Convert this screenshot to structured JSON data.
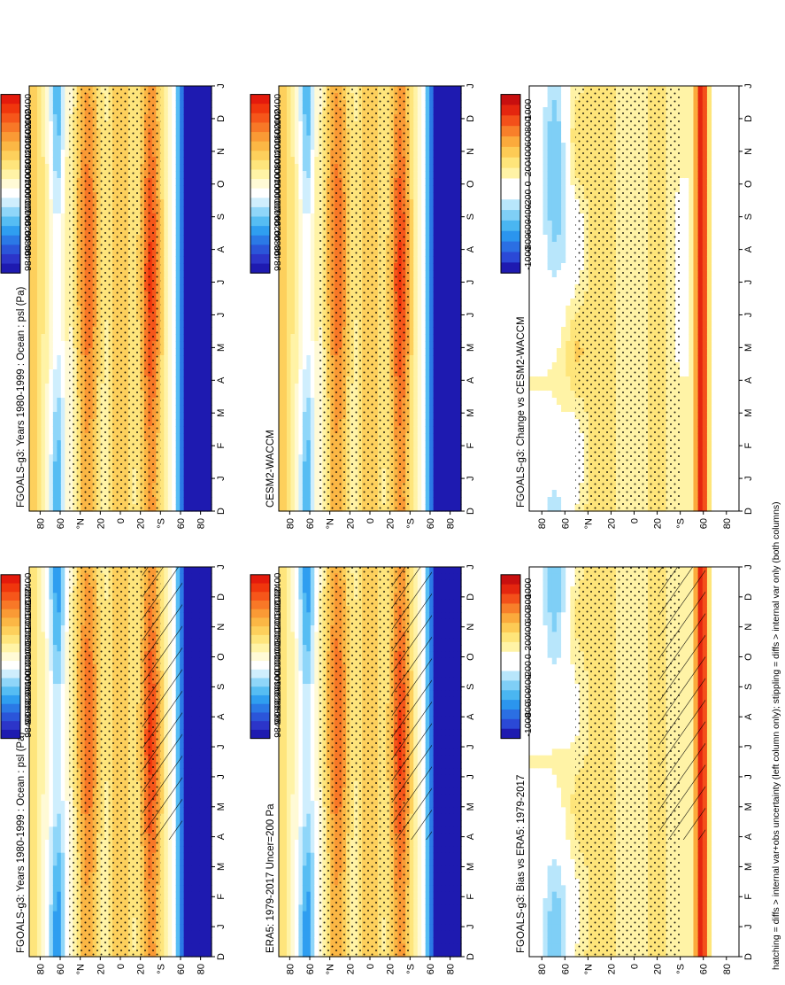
{
  "figure": {
    "footer": "hatching = diffs > internal var+obs uncertainty (left column only); stippling = diffs > internal var only (both columns)"
  },
  "chart_data": [
    {
      "type": "heatmap",
      "id": "fgoals-clim",
      "title": "FGOALS-g3: Years 1980-1999 : Ocean : psl (Pa)",
      "months": [
        "D",
        "J",
        "F",
        "M",
        "A",
        "M",
        "J",
        "J",
        "A",
        "S",
        "O",
        "N",
        "D",
        "J"
      ],
      "lat_ticks": [
        "80",
        "60",
        "°N",
        "20",
        "0",
        "20",
        "°S",
        "60",
        "80"
      ],
      "colorbar": [
        "102400",
        "102000",
        "101600",
        "101200",
        "100800",
        "100400",
        "100000",
        "99600",
        "99200",
        "98800",
        "98400"
      ],
      "kind": "clim",
      "hatching": true,
      "stippling": true
    },
    {
      "type": "heatmap",
      "id": "fgoals-clim-b",
      "title": "FGOALS-g3: Years 1980-1999 : Ocean : psl (Pa)",
      "months": [
        "D",
        "J",
        "F",
        "M",
        "A",
        "M",
        "J",
        "J",
        "A",
        "S",
        "O",
        "N",
        "D",
        "J"
      ],
      "lat_ticks": [
        "80",
        "60",
        "°N",
        "20",
        "0",
        "20",
        "°S",
        "60",
        "80"
      ],
      "colorbar": [
        "102400",
        "102000",
        "101600",
        "101200",
        "100800",
        "100400",
        "100000",
        "99600",
        "99200",
        "98800",
        "98400"
      ],
      "kind": "clim",
      "hatching": false,
      "stippling": true
    },
    {
      "type": "heatmap",
      "id": "era5",
      "title": "ERA5: 1979-2017 Uncer=200 Pa",
      "months": [
        "D",
        "J",
        "F",
        "M",
        "A",
        "M",
        "J",
        "J",
        "A",
        "S",
        "O",
        "N",
        "D",
        "J"
      ],
      "lat_ticks": [
        "80",
        "60",
        "°N",
        "20",
        "0",
        "20",
        "°S",
        "60",
        "80"
      ],
      "colorbar": [
        "102400",
        "102000",
        "101600",
        "101200",
        "100800",
        "100400",
        "100000",
        "99600",
        "99200",
        "98800",
        "98400"
      ],
      "kind": "clim",
      "hatching": true,
      "stippling": true
    },
    {
      "type": "heatmap",
      "id": "cesm2",
      "title": "CESM2-WACCM",
      "months": [
        "D",
        "J",
        "F",
        "M",
        "A",
        "M",
        "J",
        "J",
        "A",
        "S",
        "O",
        "N",
        "D",
        "J"
      ],
      "lat_ticks": [
        "80",
        "60",
        "°N",
        "20",
        "0",
        "20",
        "°S",
        "60",
        "80"
      ],
      "colorbar": [
        "102400",
        "102000",
        "101600",
        "101200",
        "100800",
        "100400",
        "100000",
        "99600",
        "99200",
        "98800",
        "98400"
      ],
      "kind": "clim",
      "hatching": false,
      "stippling": true
    },
    {
      "type": "heatmap",
      "id": "bias",
      "title": "FGOALS-g3: Bias vs ERA5: 1979-2017",
      "months": [
        "D",
        "J",
        "F",
        "M",
        "A",
        "M",
        "J",
        "J",
        "A",
        "S",
        "O",
        "N",
        "D",
        "J"
      ],
      "lat_ticks": [
        "80",
        "60",
        "°N",
        "20",
        "0",
        "20",
        "°S",
        "60",
        "80"
      ],
      "colorbar": [
        "1000",
        "800",
        "600",
        "400",
        "200",
        "0",
        "-200",
        "-400",
        "-600",
        "-800",
        "-1000"
      ],
      "kind": "diff",
      "hatching": true,
      "stippling": true
    },
    {
      "type": "heatmap",
      "id": "change",
      "title": "FGOALS-g3: Change vs CESM2-WACCM",
      "months": [
        "D",
        "J",
        "F",
        "M",
        "A",
        "M",
        "J",
        "J",
        "A",
        "S",
        "O",
        "N",
        "D",
        "J"
      ],
      "lat_ticks": [
        "80",
        "60",
        "°N",
        "20",
        "0",
        "20",
        "°S",
        "60",
        "80"
      ],
      "colorbar": [
        "1000",
        "800",
        "600",
        "400",
        "200",
        "0",
        "-200",
        "-400",
        "-600",
        "-800",
        "-1000"
      ],
      "kind": "diff",
      "hatching": false,
      "stippling": true
    }
  ]
}
